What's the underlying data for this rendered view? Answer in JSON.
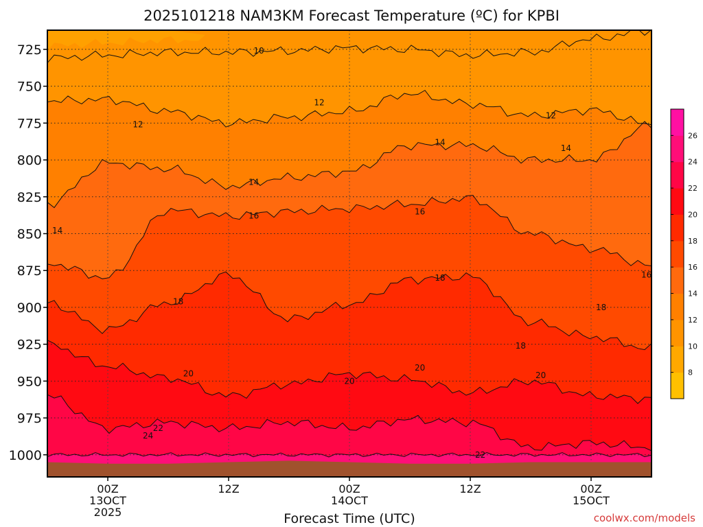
{
  "chart_data": {
    "type": "heatmap",
    "title": "2025101218 NAM3KM Forecast Temperature (ºC) for KPBI",
    "xlabel": "Forecast Time (UTC)",
    "ylabel": "",
    "y_axis": {
      "unit": "hPa",
      "range": [
        1015,
        712
      ],
      "ticks": [
        725,
        750,
        775,
        800,
        825,
        850,
        875,
        900,
        925,
        950,
        975,
        1000
      ]
    },
    "x_axis": {
      "unit": "forecast hour",
      "range": [
        -6,
        54
      ],
      "ticks": [
        {
          "hour": 0,
          "labels": [
            "00Z",
            "13OCT",
            "2025"
          ]
        },
        {
          "hour": 12,
          "labels": [
            "12Z"
          ]
        },
        {
          "hour": 24,
          "labels": [
            "00Z",
            "14OCT"
          ]
        },
        {
          "hour": 36,
          "labels": [
            "12Z"
          ]
        },
        {
          "hour": 48,
          "labels": [
            "00Z",
            "15OCT"
          ]
        }
      ]
    },
    "grid": true,
    "colorbar": {
      "levels": [
        6,
        8,
        10,
        12,
        14,
        16,
        18,
        20,
        22,
        24,
        26,
        28
      ],
      "tick_labels": [
        "8",
        "10",
        "12",
        "14",
        "16",
        "18",
        "20",
        "22",
        "24",
        "26"
      ],
      "colors": [
        "#ffc000",
        "#ffa800",
        "#ff9400",
        "#ff8000",
        "#ff6a0e",
        "#ff4a00",
        "#ff2a00",
        "#ff0a12",
        "#ff0646",
        "#ff0e78",
        "#ff10a2"
      ]
    },
    "surface": {
      "color": "#a0522d",
      "pressure_hPa": [
        1005,
        1006,
        1006,
        1005,
        1004,
        1005,
        1006,
        1006,
        1005,
        1005,
        1005
      ]
    },
    "forecast_hours": [
      -6,
      0,
      6,
      12,
      18,
      24,
      30,
      36,
      42,
      48,
      54
    ],
    "contours": [
      {
        "level": 10,
        "pressure_hPa": [
          731,
          729,
          727,
          727,
          726,
          724,
          725,
          729,
          727,
          718,
          712
        ]
      },
      {
        "level": 12,
        "pressure_hPa": [
          760,
          759,
          767,
          775,
          771,
          767,
          755,
          762,
          770,
          766,
          776
        ]
      },
      {
        "level": 14,
        "pressure_hPa": [
          830,
          802,
          806,
          818,
          812,
          808,
          790,
          790,
          800,
          800,
          776
        ]
      },
      {
        "level": 16,
        "pressure_hPa": [
          870,
          880,
          834,
          838,
          835,
          833,
          830,
          826,
          850,
          860,
          872
        ]
      },
      {
        "level": 18,
        "pressure_hPa": [
          897,
          915,
          897,
          878,
          908,
          898,
          881,
          879,
          910,
          920,
          928
        ]
      },
      {
        "level": 20,
        "pressure_hPa": [
          925,
          940,
          948,
          960,
          952,
          945,
          949,
          958,
          950,
          960,
          962
        ]
      },
      {
        "level": 22,
        "pressure_hPa": [
          960,
          982,
          978,
          982,
          978,
          982,
          976,
          978,
          995,
          992,
          995
        ]
      },
      {
        "level": 24,
        "pressure_hPa": [
          1000,
          1000,
          1000,
          1000,
          1000,
          1000,
          1000,
          1000,
          1000,
          1000,
          1000
        ]
      }
    ],
    "contour_labels": [
      {
        "text": "10",
        "hour": 15,
        "p": 726
      },
      {
        "text": "12",
        "hour": 3,
        "p": 776
      },
      {
        "text": "12",
        "hour": 21,
        "p": 761
      },
      {
        "text": "12",
        "hour": 44,
        "p": 770
      },
      {
        "text": "14",
        "hour": -5,
        "p": 848
      },
      {
        "text": "14",
        "hour": 14.5,
        "p": 815
      },
      {
        "text": "14",
        "hour": 33,
        "p": 788
      },
      {
        "text": "14",
        "hour": 45.5,
        "p": 792
      },
      {
        "text": "16",
        "hour": 14.5,
        "p": 838
      },
      {
        "text": "16",
        "hour": 31,
        "p": 835
      },
      {
        "text": "16",
        "hour": 53.5,
        "p": 878
      },
      {
        "text": "18",
        "hour": 7,
        "p": 896
      },
      {
        "text": "18",
        "hour": 33,
        "p": 880
      },
      {
        "text": "18",
        "hour": 41,
        "p": 926
      },
      {
        "text": "18",
        "hour": 49,
        "p": 900
      },
      {
        "text": "20",
        "hour": 8,
        "p": 945
      },
      {
        "text": "20",
        "hour": 24,
        "p": 950
      },
      {
        "text": "20",
        "hour": 31,
        "p": 941
      },
      {
        "text": "20",
        "hour": 43,
        "p": 946
      },
      {
        "text": "22",
        "hour": 5,
        "p": 982
      },
      {
        "text": "22",
        "hour": 37,
        "p": 1000
      },
      {
        "text": "24",
        "hour": 4,
        "p": 987
      }
    ]
  },
  "watermark": "coolwx.com/models"
}
